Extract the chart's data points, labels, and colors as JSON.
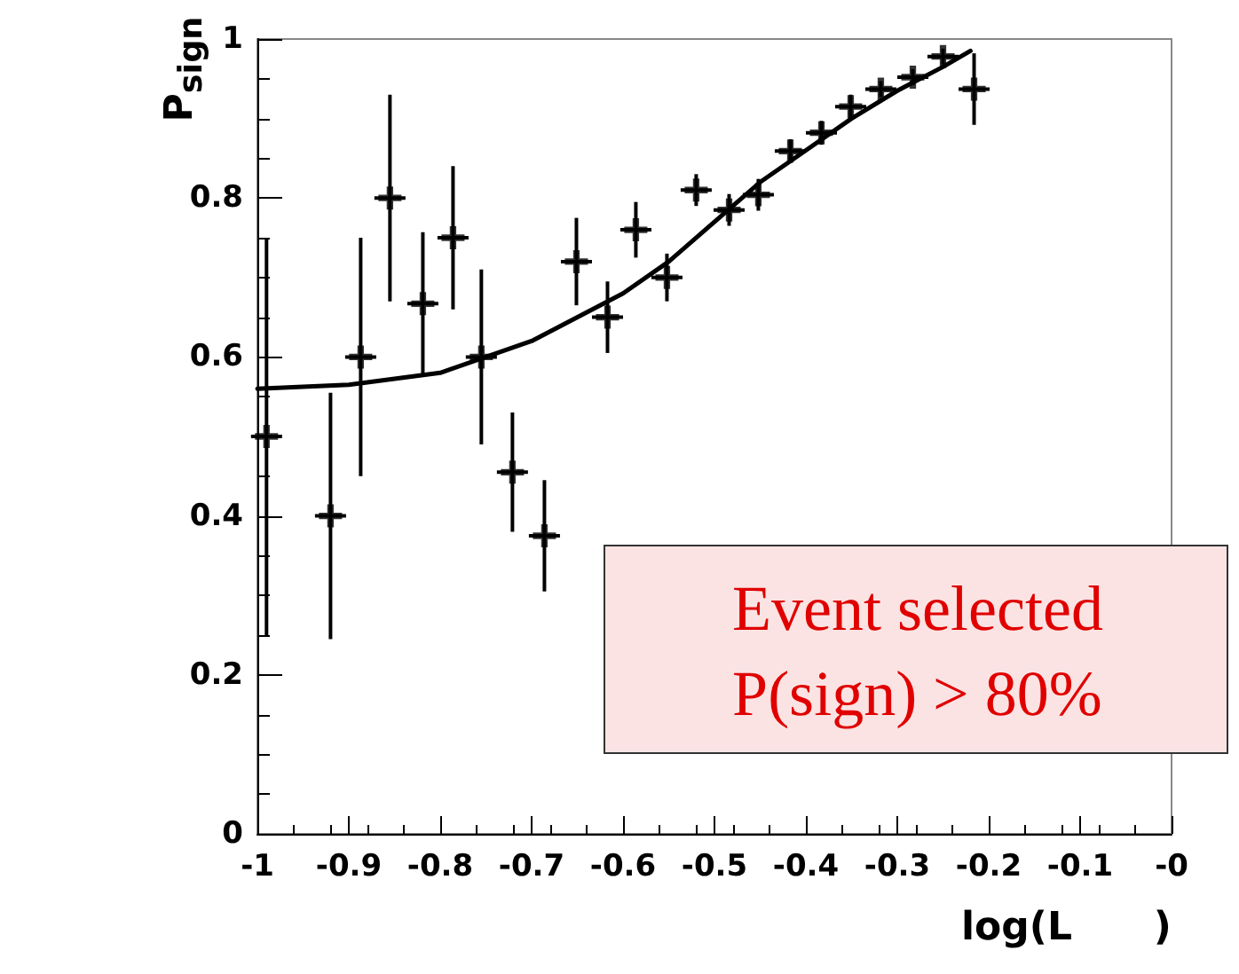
{
  "chart_data": {
    "type": "scatter",
    "xlabel": "log(L      )",
    "ylabel": "P$_{sign}$",
    "xlim": [
      -1,
      0
    ],
    "xticks": [
      -1,
      -0.9,
      -0.8,
      -0.7,
      -0.6,
      -0.5,
      -0.4,
      -0.3,
      -0.2,
      -0.1,
      {
        "value": 0,
        "label": "-0"
      }
    ],
    "ylim": [
      0,
      1
    ],
    "yticks": [
      0,
      0.2,
      0.4,
      0.6,
      0.8,
      1
    ],
    "grid": false,
    "annotations": [
      "Event selected\nP(sign) > 80%"
    ],
    "series": [
      {
        "color": "#000000",
        "marker": "cross",
        "x": [
          -0.99,
          -0.92,
          -0.887,
          -0.855,
          -0.819,
          -0.786,
          -0.755,
          -0.721,
          -0.686,
          -0.651,
          -0.617,
          -0.586,
          -0.552,
          -0.52,
          -0.484,
          -0.452,
          -0.417,
          -0.383,
          -0.351,
          -0.318,
          -0.283,
          -0.25,
          -0.216
        ],
        "values": [
          0.5,
          0.4,
          0.6,
          0.8,
          0.667,
          0.75,
          0.6,
          0.455,
          0.375,
          0.72,
          0.65,
          0.76,
          0.7,
          0.81,
          0.785,
          0.804,
          0.859,
          0.882,
          0.915,
          0.937,
          0.952,
          0.978,
          0.937
        ],
        "errors": [
          0.25,
          0.155,
          0.15,
          0.13,
          0.09,
          0.09,
          0.11,
          0.075,
          0.07,
          0.055,
          0.045,
          0.035,
          0.03,
          0.02,
          0.02,
          0.02,
          0.015,
          0.015,
          0.015,
          0.01,
          0.01,
          0.01,
          0.045
        ],
        "xerrors": [
          0.017,
          0.017,
          0.017,
          0.017,
          0.017,
          0.017,
          0.017,
          0.017,
          0.017,
          0.017,
          0.017,
          0.017,
          0.017,
          0.017,
          0.017,
          0.017,
          0.017,
          0.017,
          0.017,
          0.017,
          0.017,
          0.017,
          0.017
        ]
      },
      {
        "type": "line",
        "color": "#000000",
        "marker": "none",
        "line_style": "solid",
        "x": [
          -1,
          -0.9,
          -0.8,
          -0.7,
          -0.6,
          -0.55,
          -0.5,
          -0.45,
          -0.4,
          -0.35,
          -0.3,
          -0.25,
          -0.22
        ],
        "values": [
          0.56,
          0.565,
          0.58,
          0.62,
          0.68,
          0.72,
          0.77,
          0.82,
          0.86,
          0.9,
          0.935,
          0.965,
          0.985
        ]
      }
    ]
  }
}
